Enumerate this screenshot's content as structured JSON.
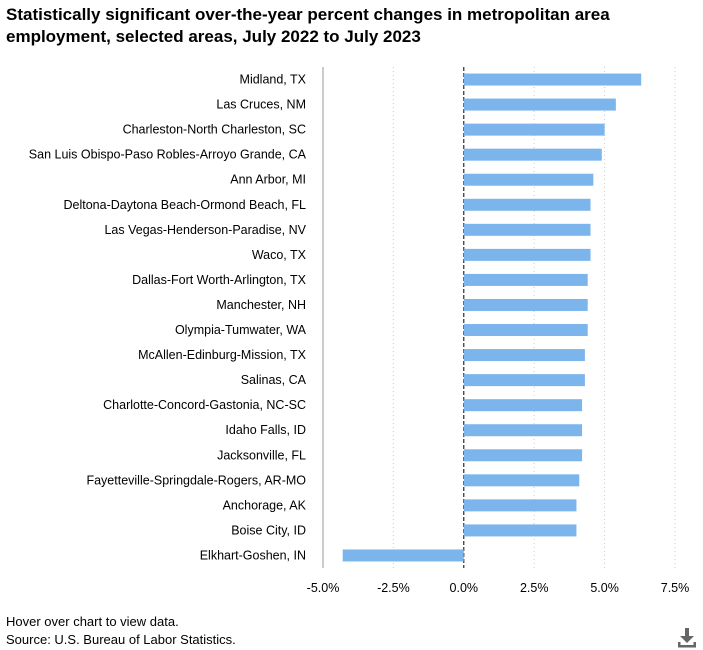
{
  "title": "Statistically significant over-the-year percent changes in metropolitan area employment, selected areas, July 2022 to July 2023",
  "footer": {
    "hint": "Hover over chart to view data.",
    "source": "Source: U.S. Bureau of Labor Statistics."
  },
  "icons": {
    "download": "download-icon"
  },
  "colors": {
    "bar": "#7cb5ec",
    "grid": "#cccccc",
    "zero_line": "#000000",
    "axis_line": "#999999"
  },
  "chart_data": {
    "type": "bar",
    "orientation": "horizontal",
    "categories": [
      "Midland, TX",
      "Las Cruces, NM",
      "Charleston-North Charleston, SC",
      "San Luis Obispo-Paso Robles-Arroyo Grande, CA",
      "Ann Arbor, MI",
      "Deltona-Daytona Beach-Ormond Beach, FL",
      "Las Vegas-Henderson-Paradise, NV",
      "Waco, TX",
      "Dallas-Fort Worth-Arlington, TX",
      "Manchester, NH",
      "Olympia-Tumwater, WA",
      "McAllen-Edinburg-Mission, TX",
      "Salinas, CA",
      "Charlotte-Concord-Gastonia, NC-SC",
      "Idaho Falls, ID",
      "Jacksonville, FL",
      "Fayetteville-Springdale-Rogers, AR-MO",
      "Anchorage, AK",
      "Boise City, ID",
      "Elkhart-Goshen, IN"
    ],
    "values": [
      6.3,
      5.4,
      5.0,
      4.9,
      4.6,
      4.5,
      4.5,
      4.5,
      4.4,
      4.4,
      4.4,
      4.3,
      4.3,
      4.2,
      4.2,
      4.2,
      4.1,
      4.0,
      4.0,
      -4.3
    ],
    "xlim": [
      -5.0,
      7.5
    ],
    "xticks": [
      -5.0,
      -2.5,
      0.0,
      2.5,
      5.0,
      7.5
    ],
    "xtick_labels": [
      "-5.0%",
      "-2.5%",
      "0.0%",
      "2.5%",
      "5.0%",
      "7.5%"
    ],
    "xlabel": "",
    "ylabel": "",
    "grid": true,
    "legend": false
  }
}
